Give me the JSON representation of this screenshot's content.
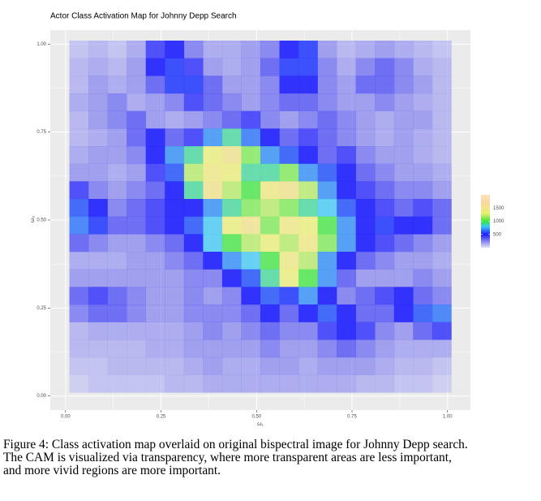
{
  "chart_data": {
    "type": "heatmap",
    "title": "Actor Class Activation Map for Johnny Depp Search",
    "x_label": "ω₁",
    "y_label": "ω₂",
    "xlim": [
      -0.04,
      1.06
    ],
    "ylim": [
      -0.04,
      1.04
    ],
    "xticks": [
      {
        "value": 0,
        "label": "0.00"
      },
      {
        "value": 0.25,
        "label": "0.25"
      },
      {
        "value": 0.5,
        "label": "0.50"
      },
      {
        "value": 0.75,
        "label": "0.75"
      },
      {
        "value": 1,
        "label": "1.00"
      }
    ],
    "yticks": [
      {
        "value": 0,
        "label": "0.00"
      },
      {
        "value": 0.25,
        "label": "0.25"
      },
      {
        "value": 0.5,
        "label": "0.50"
      },
      {
        "value": 0.75,
        "label": "0.75"
      },
      {
        "value": 1,
        "label": "1.00"
      }
    ],
    "grid": true,
    "x": [
      0.035,
      0.085,
      0.135,
      0.185,
      0.235,
      0.285,
      0.335,
      0.385,
      0.435,
      0.485,
      0.535,
      0.585,
      0.635,
      0.685,
      0.735,
      0.785,
      0.835,
      0.885,
      0.935,
      0.985
    ],
    "y": [
      0.985,
      0.935,
      0.885,
      0.835,
      0.785,
      0.735,
      0.685,
      0.635,
      0.585,
      0.535,
      0.485,
      0.435,
      0.385,
      0.335,
      0.285,
      0.235,
      0.185,
      0.135,
      0.085,
      0.035
    ],
    "z": [
      [
        150,
        200,
        150,
        250,
        450,
        500,
        350,
        250,
        250,
        300,
        350,
        500,
        550,
        300,
        200,
        250,
        300,
        250,
        200,
        150
      ],
      [
        200,
        250,
        200,
        300,
        500,
        550,
        450,
        300,
        250,
        300,
        400,
        550,
        550,
        350,
        250,
        350,
        400,
        350,
        250,
        200
      ],
      [
        200,
        300,
        250,
        300,
        400,
        550,
        550,
        400,
        300,
        300,
        350,
        500,
        500,
        350,
        300,
        400,
        400,
        350,
        300,
        200
      ],
      [
        250,
        300,
        350,
        250,
        300,
        350,
        450,
        400,
        350,
        300,
        350,
        400,
        400,
        350,
        300,
        300,
        350,
        300,
        250,
        200
      ],
      [
        200,
        300,
        350,
        400,
        300,
        250,
        300,
        350,
        400,
        450,
        350,
        300,
        350,
        400,
        350,
        300,
        250,
        300,
        300,
        200
      ],
      [
        200,
        250,
        300,
        400,
        500,
        400,
        450,
        700,
        900,
        650,
        500,
        400,
        450,
        400,
        350,
        300,
        250,
        300,
        250,
        200
      ],
      [
        250,
        300,
        300,
        350,
        500,
        700,
        900,
        1300,
        1500,
        1100,
        700,
        600,
        500,
        400,
        450,
        350,
        300,
        300,
        250,
        200
      ],
      [
        300,
        300,
        250,
        300,
        450,
        600,
        1200,
        1400,
        1300,
        900,
        900,
        1100,
        700,
        600,
        500,
        400,
        350,
        300,
        300,
        250
      ],
      [
        450,
        350,
        300,
        350,
        400,
        500,
        900,
        1500,
        1200,
        1000,
        1400,
        1500,
        1200,
        700,
        500,
        450,
        400,
        350,
        350,
        300
      ],
      [
        600,
        500,
        350,
        400,
        450,
        500,
        500,
        700,
        900,
        1100,
        1200,
        1100,
        900,
        800,
        600,
        500,
        450,
        400,
        450,
        400
      ],
      [
        650,
        550,
        400,
        400,
        450,
        500,
        600,
        800,
        1300,
        1500,
        1100,
        1400,
        1300,
        1000,
        700,
        500,
        550,
        500,
        500,
        400
      ],
      [
        400,
        350,
        300,
        300,
        350,
        400,
        500,
        800,
        1000,
        1200,
        1300,
        1200,
        1400,
        1100,
        700,
        500,
        450,
        400,
        350,
        300
      ],
      [
        250,
        250,
        250,
        300,
        300,
        350,
        400,
        500,
        700,
        800,
        1000,
        1400,
        1200,
        700,
        500,
        400,
        350,
        300,
        300,
        250
      ],
      [
        300,
        300,
        300,
        300,
        300,
        300,
        350,
        350,
        500,
        600,
        900,
        1300,
        1000,
        700,
        400,
        300,
        300,
        300,
        350,
        300
      ],
      [
        400,
        450,
        400,
        350,
        300,
        300,
        350,
        300,
        350,
        500,
        600,
        550,
        700,
        500,
        350,
        400,
        450,
        500,
        400,
        350
      ],
      [
        350,
        400,
        400,
        350,
        300,
        300,
        350,
        350,
        350,
        400,
        500,
        400,
        500,
        600,
        500,
        400,
        400,
        500,
        600,
        650
      ],
      [
        200,
        250,
        250,
        250,
        250,
        250,
        300,
        350,
        300,
        350,
        400,
        350,
        350,
        450,
        500,
        450,
        350,
        300,
        400,
        450
      ],
      [
        200,
        200,
        200,
        200,
        250,
        250,
        300,
        300,
        300,
        300,
        350,
        300,
        300,
        350,
        400,
        350,
        300,
        250,
        250,
        250
      ],
      [
        150,
        150,
        200,
        200,
        200,
        200,
        250,
        300,
        250,
        250,
        300,
        300,
        250,
        300,
        300,
        300,
        250,
        200,
        200,
        150
      ],
      [
        100,
        150,
        150,
        150,
        150,
        200,
        200,
        250,
        250,
        250,
        250,
        250,
        250,
        250,
        250,
        200,
        200,
        150,
        150,
        100
      ]
    ],
    "clim": [
      0,
      2000
    ],
    "cticks": [
      500,
      1000,
      1500
    ]
  },
  "caption": [
    "Figure 4: Class activation map overlaid on original bispectral image for Johnny Depp search.",
    "The CAM is visualized via transparency, where more transparent areas are less important,",
    "and more vivid regions are more important."
  ]
}
